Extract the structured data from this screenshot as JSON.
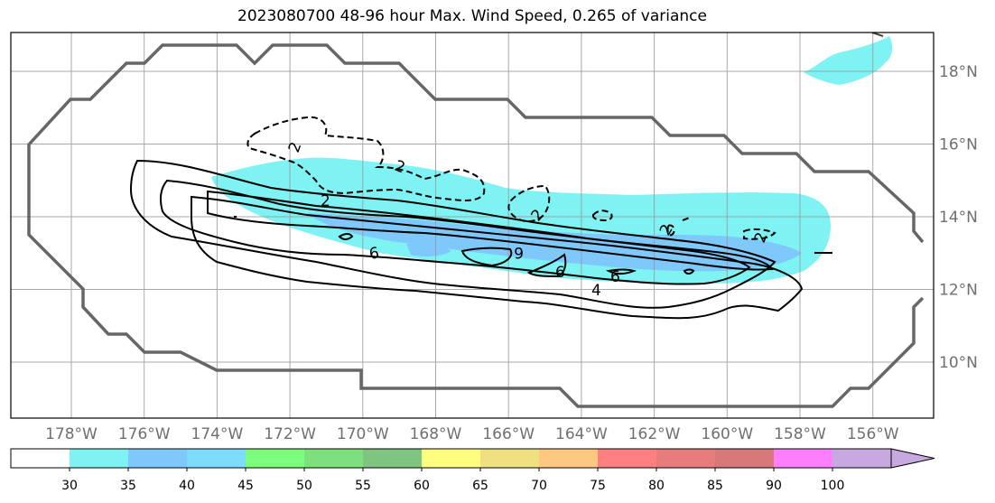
{
  "title": "2023080700 48-96 hour Max. Wind Speed, 0.265 of variance",
  "map": {
    "lon_ticks": [
      "178°W",
      "176°W",
      "174°W",
      "172°W",
      "170°W",
      "168°W",
      "166°W",
      "164°W",
      "162°W",
      "160°W",
      "158°W",
      "156°W"
    ],
    "lat_ticks": [
      "18°N",
      "16°N",
      "14°N",
      "12°N",
      "10°N"
    ],
    "grid": true,
    "contour_labels": [
      "2",
      "2",
      "2",
      "2",
      "2",
      "2",
      "-6",
      "6",
      "6",
      "6",
      "4"
    ]
  },
  "colorbar": {
    "levels": [
      "30",
      "35",
      "40",
      "45",
      "50",
      "55",
      "60",
      "65",
      "70",
      "75",
      "80",
      "85",
      "90",
      "100"
    ],
    "colors": [
      "#ffffff",
      "#7ff3f3",
      "#7ec8fb",
      "#7ddcfb",
      "#7cfd7c",
      "#7ce07c",
      "#7fc47f",
      "#fdfd7f",
      "#f0e080",
      "#fec880",
      "#fd7f7f",
      "#e87b7b",
      "#d87878",
      "#fd7ffd",
      "#c8a8e0"
    ]
  }
}
